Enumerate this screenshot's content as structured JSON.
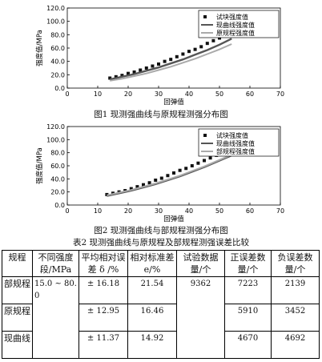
{
  "fig1": {
    "caption": "图1 现测强曲线与原规程测强分布图",
    "chart_data": {
      "type": "scatter",
      "xlabel": "回弹值",
      "ylabel": "强度值/MPa",
      "xlim": [
        0,
        70
      ],
      "ylim": [
        0,
        120
      ],
      "xticks": [
        "0",
        "10",
        "20",
        "30",
        "40",
        "50",
        "60",
        "70"
      ],
      "yticks": [
        "0.0",
        "20.0",
        "40.0",
        "60.0",
        "80.0",
        "100.0",
        "120.0"
      ],
      "legend_position": "top-right",
      "series": [
        {
          "name": "试块强度值",
          "kind": "scatter",
          "color": "#111111",
          "x": [
            14,
            16,
            18,
            20,
            22,
            24,
            26,
            28,
            30,
            32,
            34,
            36,
            38,
            40,
            42,
            44,
            46,
            48,
            50,
            52,
            54
          ],
          "y": [
            15,
            17,
            19,
            22,
            24,
            27,
            30,
            33,
            36,
            40,
            43,
            47,
            51,
            55,
            58,
            62,
            67,
            71,
            75,
            78,
            82
          ]
        },
        {
          "name": "现曲线强度值",
          "kind": "curve",
          "color": "#555555",
          "x": [
            14,
            18,
            22,
            26,
            30,
            34,
            38,
            42,
            46,
            50,
            54
          ],
          "y": [
            13,
            17,
            21,
            26,
            31,
            37,
            43,
            50,
            57,
            65,
            74
          ]
        },
        {
          "name": "原规程强度值",
          "kind": "curve",
          "color": "#aaaaaa",
          "x": [
            14,
            18,
            22,
            26,
            30,
            34,
            38,
            42,
            46,
            50,
            54
          ],
          "y": [
            11,
            14,
            18,
            22,
            27,
            32,
            38,
            44,
            51,
            58,
            66
          ]
        }
      ]
    }
  },
  "fig2": {
    "caption": "图2 现测强曲线与部规程测强分布图",
    "chart_data": {
      "type": "scatter",
      "xlabel": "回弹值",
      "ylabel": "强度值/MPa",
      "xlim": [
        0,
        70
      ],
      "ylim": [
        0,
        120
      ],
      "xticks": [
        "0",
        "10",
        "20",
        "30",
        "40",
        "50",
        "60",
        "70"
      ],
      "yticks": [
        "0.0",
        "20.0",
        "40.0",
        "60.0",
        "80.0",
        "100.0",
        "120.0"
      ],
      "legend_position": "top-right",
      "series": [
        {
          "name": "试块强度值",
          "kind": "scatter",
          "color": "#111111",
          "x": [
            13,
            15,
            17,
            19,
            21,
            23,
            25,
            27,
            29,
            31,
            33,
            35,
            37,
            39,
            41,
            43,
            45,
            47,
            49,
            51,
            53,
            55
          ],
          "y": [
            16,
            18,
            20,
            22,
            25,
            28,
            31,
            34,
            38,
            41,
            45,
            49,
            53,
            56,
            60,
            64,
            68,
            72,
            76,
            79,
            83,
            86
          ]
        },
        {
          "name": "现曲线强度值",
          "kind": "curve",
          "color": "#555555",
          "x": [
            13,
            17,
            21,
            25,
            29,
            33,
            37,
            41,
            45,
            49,
            53,
            56
          ],
          "y": [
            14,
            18,
            22,
            27,
            32,
            38,
            44,
            51,
            58,
            66,
            74,
            80
          ]
        },
        {
          "name": "部规程强度值",
          "kind": "curve",
          "color": "#aaaaaa",
          "x": [
            13,
            17,
            21,
            25,
            29,
            33,
            37,
            41,
            45,
            49,
            53,
            56
          ],
          "y": [
            15,
            19,
            23,
            28,
            33,
            39,
            45,
            52,
            59,
            67,
            75,
            82
          ]
        }
      ]
    }
  },
  "table": {
    "title": "表2 现测强曲线与原规程及部规程测强误差比较",
    "headers": [
      "规程",
      "不同强度段/MPa",
      "平均相对误差 δ /%",
      "相对标准差 e/%",
      "试验数据量/个",
      "正误差数量/个",
      "负误差数量/个"
    ],
    "rows": [
      {
        "name": "部规程",
        "range": "15.0 ~ 80.0",
        "delta": "± 16.18",
        "e": "21.54",
        "count": "9362",
        "pos": "7223",
        "neg": "2139"
      },
      {
        "name": "原规程",
        "range": "",
        "delta": "± 12.95",
        "e": "16.46",
        "count": "",
        "pos": "5910",
        "neg": "3452"
      },
      {
        "name": "现曲线",
        "range": "",
        "delta": "± 11.37",
        "e": "14.92",
        "count": "",
        "pos": "4670",
        "neg": "4692"
      }
    ]
  }
}
